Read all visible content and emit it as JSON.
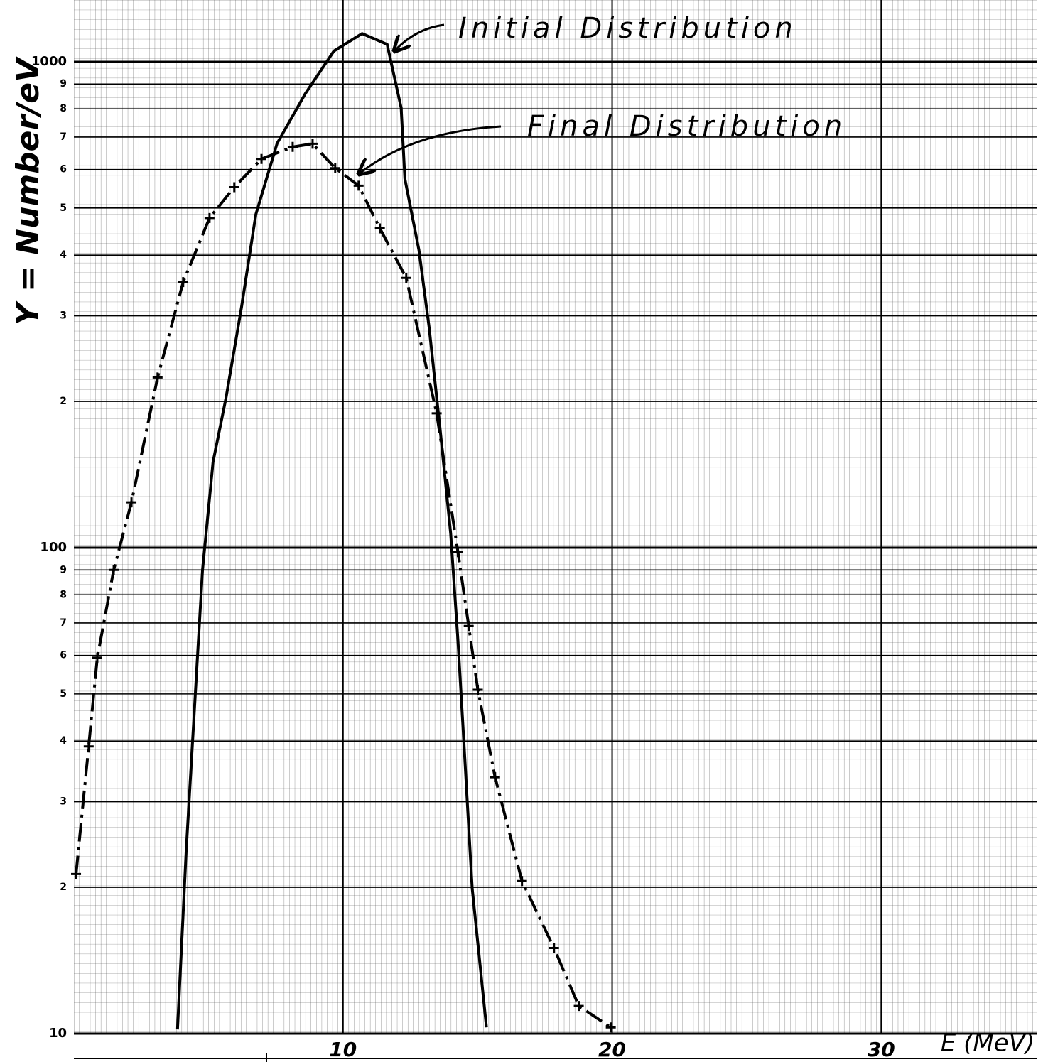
{
  "chart_data": {
    "type": "line",
    "ylabel": "Y = Number/eV",
    "xlabel": "E (MeV)",
    "annotations": [
      "Initial Distribution",
      "Final Distribution"
    ],
    "y_log": true,
    "grid": true,
    "xlim": [
      0,
      35.8
    ],
    "ylim": [
      10,
      1340
    ],
    "xticks": [
      10,
      20,
      30
    ],
    "yticks": [
      10,
      {
        "value": 20,
        "label": "2"
      },
      {
        "value": 30,
        "label": "3"
      },
      {
        "value": 40,
        "label": "4"
      },
      {
        "value": 50,
        "label": "5"
      },
      {
        "value": 60,
        "label": "6"
      },
      {
        "value": 70,
        "label": "7"
      },
      {
        "value": 80,
        "label": "8"
      },
      {
        "value": 90,
        "label": "9"
      },
      100,
      {
        "value": 200,
        "label": "2"
      },
      {
        "value": 300,
        "label": "3"
      },
      {
        "value": 400,
        "label": "4"
      },
      {
        "value": 500,
        "label": "5"
      },
      {
        "value": 600,
        "label": "6"
      },
      {
        "value": 700,
        "label": "7"
      },
      {
        "value": 800,
        "label": "8"
      },
      {
        "value": 900,
        "label": "9"
      },
      1000
    ],
    "series": [
      {
        "name": "Initial Distribution",
        "color": "#000000",
        "style": "solid",
        "x": [
          3.85,
          4.17,
          4.78,
          5.17,
          5.65,
          6.23,
          6.76,
          7.55,
          8.6,
          9.66,
          10.71,
          11.64,
          12.16,
          12.3,
          12.82,
          13.2,
          13.6,
          14.0,
          14.27,
          14.5,
          14.8,
          15.33
        ],
        "values": [
          10.2,
          23.6,
          90,
          150,
          203,
          313,
          485,
          679,
          860,
          1052,
          1143,
          1086,
          804,
          574,
          410,
          284,
          177,
          107,
          64.5,
          39,
          19.9,
          10.3
        ]
      },
      {
        "name": "Final Distribution",
        "color": "#000000",
        "style": "dashdot",
        "markers": true,
        "x": [
          0.08,
          0.55,
          0.87,
          1.48,
          2.14,
          3.11,
          4.06,
          5.04,
          5.96,
          6.97,
          8.13,
          8.87,
          9.71,
          10.58,
          11.37,
          12.35,
          13.48,
          14.27,
          14.67,
          15.01,
          15.65,
          16.65,
          17.84,
          18.76,
          19.95
        ],
        "values": [
          21.3,
          39,
          59.4,
          90,
          124,
          224,
          352,
          477,
          552,
          631,
          668,
          678,
          604,
          556,
          454,
          359,
          189,
          98,
          69,
          51,
          33.7,
          20.6,
          15,
          11.4,
          10.3
        ]
      }
    ]
  }
}
